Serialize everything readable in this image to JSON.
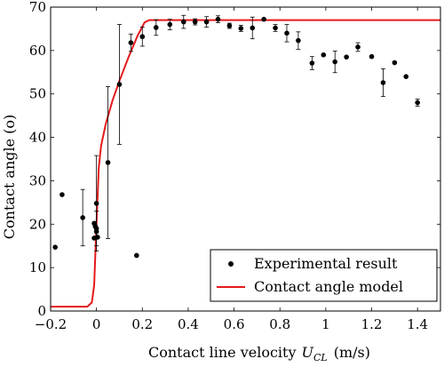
{
  "chart_data": {
    "type": "scatter",
    "xlabel": "Contact line velocity",
    "xlabel_symbol": "U",
    "xlabel_subscript": "CL",
    "xlabel_unit": "(m/s)",
    "ylabel": "Contact angle",
    "ylabel_unit": "(o)",
    "xlim": [
      -0.2,
      1.5
    ],
    "ylim": [
      0,
      70
    ],
    "xticks": [
      -0.2,
      0,
      0.2,
      0.4,
      0.6,
      0.8,
      1,
      1.2,
      1.4
    ],
    "xtick_labels": [
      "−0.2",
      "0",
      "0.2",
      "0.4",
      "0.6",
      "0.8",
      "1",
      "1.2",
      "1.4"
    ],
    "yticks": [
      0,
      10,
      20,
      30,
      40,
      50,
      60,
      70
    ],
    "ytick_labels": [
      "0",
      "10",
      "20",
      "30",
      "40",
      "50",
      "60",
      "70"
    ],
    "grid": false,
    "legend_position": "bottom-right",
    "series": [
      {
        "name": "Experimental result",
        "kind": "points_with_errorbars",
        "color": "#000000",
        "points": [
          {
            "x": -0.18,
            "y": 14.7
          },
          {
            "x": -0.15,
            "y": 26.8
          },
          {
            "x": -0.06,
            "y": 21.5,
            "err": 6.5
          },
          {
            "x": -0.01,
            "y": 20.2
          },
          {
            "x": -0.005,
            "y": 19.5
          },
          {
            "x": 0.0,
            "y": 19.0,
            "err": 4.0
          },
          {
            "x": 0.0,
            "y": 18.3
          },
          {
            "x": 0.005,
            "y": 17.0
          },
          {
            "x": -0.01,
            "y": 16.8
          },
          {
            "x": 0.0,
            "y": 24.8,
            "err": 11.0
          },
          {
            "x": 0.05,
            "y": 34.2,
            "err": 17.5
          },
          {
            "x": 0.1,
            "y": 52.2,
            "err": 13.8
          },
          {
            "x": 0.15,
            "y": 61.8,
            "err": 2.0
          },
          {
            "x": 0.175,
            "y": 12.8
          },
          {
            "x": 0.2,
            "y": 63.2,
            "err": 2.2
          },
          {
            "x": 0.26,
            "y": 65.3,
            "err": 1.8
          },
          {
            "x": 0.32,
            "y": 66.0,
            "err": 1.2
          },
          {
            "x": 0.38,
            "y": 66.6,
            "err": 1.5
          },
          {
            "x": 0.43,
            "y": 66.6,
            "err": 0.7
          },
          {
            "x": 0.48,
            "y": 66.6,
            "err": 1.2
          },
          {
            "x": 0.53,
            "y": 67.2,
            "err": 0.8
          },
          {
            "x": 0.58,
            "y": 65.7,
            "err": 0.6
          },
          {
            "x": 0.63,
            "y": 65.1,
            "err": 0.7
          },
          {
            "x": 0.68,
            "y": 65.2,
            "err": 2.5
          },
          {
            "x": 0.73,
            "y": 67.2
          },
          {
            "x": 0.78,
            "y": 65.2,
            "err": 0.8
          },
          {
            "x": 0.83,
            "y": 64.0,
            "err": 2.0
          },
          {
            "x": 0.88,
            "y": 62.3,
            "err": 2.0
          },
          {
            "x": 0.94,
            "y": 57.1,
            "err": 1.5
          },
          {
            "x": 0.99,
            "y": 59.0
          },
          {
            "x": 1.04,
            "y": 57.4,
            "err": 2.5
          },
          {
            "x": 1.09,
            "y": 58.5
          },
          {
            "x": 1.14,
            "y": 60.8,
            "err": 1.0
          },
          {
            "x": 1.2,
            "y": 58.6
          },
          {
            "x": 1.25,
            "y": 52.6,
            "err": 3.2
          },
          {
            "x": 1.3,
            "y": 57.2
          },
          {
            "x": 1.35,
            "y": 54.0
          },
          {
            "x": 1.4,
            "y": 48.0,
            "err": 0.8
          }
        ]
      },
      {
        "name": "Contact angle model",
        "kind": "line",
        "color": "#e41a1c",
        "points": [
          {
            "x": -0.2,
            "y": 1.0
          },
          {
            "x": -0.04,
            "y": 1.0
          },
          {
            "x": -0.02,
            "y": 2.0
          },
          {
            "x": -0.01,
            "y": 6.0
          },
          {
            "x": 0.0,
            "y": 20.0
          },
          {
            "x": 0.01,
            "y": 33.0
          },
          {
            "x": 0.02,
            "y": 38.0
          },
          {
            "x": 0.04,
            "y": 43.0
          },
          {
            "x": 0.07,
            "y": 48.5
          },
          {
            "x": 0.1,
            "y": 53.0
          },
          {
            "x": 0.14,
            "y": 58.5
          },
          {
            "x": 0.18,
            "y": 63.5
          },
          {
            "x": 0.21,
            "y": 66.5
          },
          {
            "x": 0.23,
            "y": 67.0
          },
          {
            "x": 1.5,
            "y": 67.0
          }
        ]
      }
    ]
  }
}
